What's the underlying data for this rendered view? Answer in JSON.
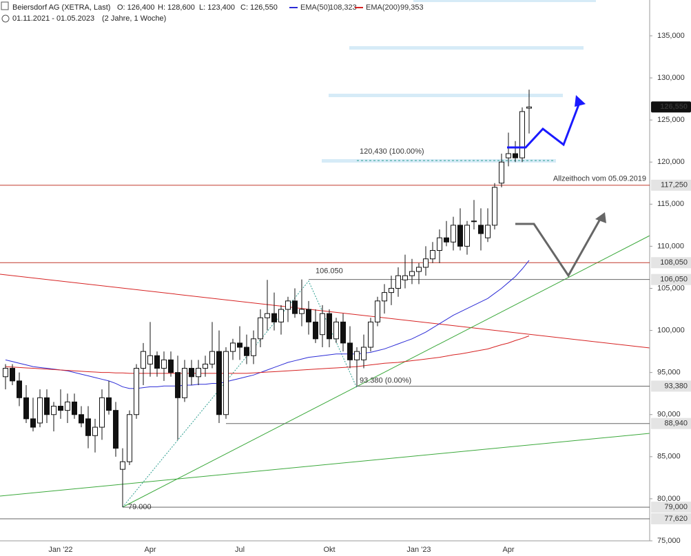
{
  "chart_data": {
    "type": "candlestick",
    "title": "Beiersdorf AG (XETRA, Last)",
    "ohlc_texts": [
      "O: 126,400",
      "H: 128,600",
      "L: 123,400",
      "C: 126,550"
    ],
    "date_range": "01.11.2021 - 01.05.2023",
    "period": "(2 Jahre, 1 Woche)",
    "categories": [
      null,
      null,
      null,
      null,
      null,
      null,
      null,
      null,
      "Jan '22",
      null,
      null,
      null,
      null,
      null,
      null,
      null,
      null,
      null,
      null,
      null,
      null,
      "Apr",
      null,
      null,
      null,
      null,
      null,
      null,
      null,
      null,
      null,
      null,
      null,
      null,
      "Jul",
      null,
      null,
      null,
      null,
      null,
      null,
      null,
      null,
      null,
      null,
      null,
      null,
      "Okt",
      null,
      null,
      null,
      null,
      null,
      null,
      null,
      null,
      null,
      null,
      null,
      null,
      "Jan '23",
      null,
      null,
      null,
      null,
      null,
      null,
      null,
      null,
      null,
      null,
      null,
      null,
      "Apr",
      null,
      null,
      null
    ],
    "open": [
      94500,
      95500,
      94000,
      92000,
      89500,
      89000,
      92000,
      90000,
      91000,
      90500,
      91500,
      90000,
      89500,
      87500,
      88500,
      92000,
      90500,
      83500,
      84400,
      90000,
      95500,
      96000,
      97000,
      95500,
      96500,
      95000,
      92000,
      95500,
      94500,
      95500,
      96000,
      97500,
      90000,
      97500,
      98500,
      98000,
      97000,
      99000,
      101500,
      102000,
      101000,
      102500,
      103500,
      102000,
      102500,
      101000,
      99500,
      102000,
      99000,
      101000,
      98500,
      96500,
      96500,
      98000,
      101000,
      103500,
      104500,
      105000,
      106000,
      106500,
      107000,
      107500,
      108500,
      109500,
      111000,
      110500,
      112500,
      110000,
      113000,
      112500,
      111000,
      112500,
      117500,
      120500,
      121000,
      120500,
      126400
    ],
    "high": [
      96000,
      96000,
      95000,
      93500,
      92000,
      93000,
      93000,
      91500,
      93000,
      92500,
      92500,
      91000,
      91000,
      89500,
      93000,
      94000,
      91500,
      86000,
      90500,
      96000,
      98500,
      101000,
      97500,
      97500,
      97500,
      97000,
      96500,
      96500,
      96500,
      97000,
      101000,
      100000,
      98000,
      99000,
      100500,
      99500,
      100000,
      102500,
      106000,
      104500,
      103000,
      104000,
      105000,
      106050,
      103500,
      102500,
      103000,
      102500,
      101500,
      102000,
      100500,
      98000,
      99500,
      101500,
      104000,
      105500,
      106500,
      107500,
      109000,
      108500,
      108000,
      110000,
      110500,
      112000,
      113000,
      113500,
      114500,
      113000,
      115500,
      114500,
      114500,
      117500,
      121000,
      123500,
      122500,
      126500,
      128600
    ],
    "low": [
      93000,
      93500,
      91000,
      89000,
      88000,
      88500,
      89000,
      88000,
      89500,
      89000,
      89500,
      88500,
      86000,
      85500,
      87000,
      90000,
      85000,
      79000,
      84000,
      89500,
      93500,
      94500,
      94500,
      94000,
      94500,
      87000,
      91500,
      93500,
      93500,
      94500,
      95500,
      89000,
      89500,
      96500,
      96500,
      96000,
      96000,
      98000,
      100000,
      100000,
      99500,
      101000,
      101500,
      100500,
      99500,
      98500,
      98000,
      98000,
      98500,
      97500,
      95500,
      93380,
      95500,
      97500,
      100500,
      102000,
      103000,
      104000,
      105000,
      105500,
      105500,
      106500,
      108000,
      108000,
      110000,
      109500,
      109500,
      109000,
      112000,
      109500,
      110500,
      112000,
      117000,
      119500,
      120000,
      120000,
      123400
    ],
    "close": [
      95500,
      94000,
      92000,
      89500,
      88500,
      92000,
      90000,
      91000,
      90500,
      91500,
      90000,
      89000,
      87500,
      88500,
      92000,
      90500,
      86000,
      84400,
      90000,
      95500,
      97500,
      97000,
      95500,
      96500,
      95000,
      92000,
      95500,
      94500,
      95500,
      96000,
      97500,
      90000,
      97500,
      98500,
      98000,
      97000,
      99000,
      101500,
      102000,
      101000,
      102500,
      103500,
      102000,
      102500,
      101000,
      99000,
      102000,
      99000,
      101000,
      98500,
      96500,
      97500,
      98000,
      101000,
      103500,
      104500,
      105000,
      106500,
      106500,
      107000,
      107500,
      108500,
      109500,
      111000,
      110500,
      112500,
      110000,
      112500,
      113000,
      111500,
      112500,
      117000,
      120000,
      121000,
      120500,
      126000,
      126550
    ],
    "series": [
      {
        "name": "EMA(50)",
        "color": "#2b2bd6",
        "value_label": "108,323",
        "values": [
          96500,
          96300,
          96100,
          95900,
          95700,
          95600,
          95500,
          95400,
          95300,
          95200,
          95000,
          94800,
          94600,
          94400,
          94200,
          94000,
          93700,
          93300,
          93100,
          93100,
          93200,
          93300,
          93300,
          93400,
          93400,
          93400,
          93500,
          93500,
          93600,
          93600,
          93700,
          93700,
          93900,
          94100,
          94300,
          94500,
          94700,
          95000,
          95300,
          95600,
          95900,
          96200,
          96400,
          96600,
          96800,
          96900,
          97000,
          97100,
          97200,
          97200,
          97200,
          97200,
          97300,
          97400,
          97600,
          97800,
          98100,
          98400,
          98700,
          99000,
          99400,
          99800,
          100300,
          100800,
          101300,
          101800,
          102200,
          102600,
          103000,
          103400,
          103800,
          104400,
          105000,
          105700,
          106400,
          107300,
          108323
        ]
      },
      {
        "name": "EMA(200)",
        "color": "#d62020",
        "value_label": "99,353",
        "values": [
          95700,
          95650,
          95600,
          95550,
          95500,
          95450,
          95400,
          95350,
          95300,
          95250,
          95200,
          95150,
          95100,
          95050,
          95000,
          95000,
          94950,
          94950,
          94900,
          94900,
          94900,
          94900,
          94900,
          94900,
          94900,
          94900,
          94900,
          94900,
          94900,
          94900,
          94900,
          94900,
          94900,
          94900,
          94900,
          94900,
          94950,
          95000,
          95050,
          95100,
          95150,
          95200,
          95250,
          95300,
          95350,
          95400,
          95450,
          95500,
          95550,
          95600,
          95650,
          95700,
          95800,
          95900,
          96000,
          96100,
          96150,
          96200,
          96300,
          96400,
          96500,
          96600,
          96700,
          96800,
          96950,
          97100,
          97200,
          97350,
          97500,
          97650,
          97800,
          98050,
          98300,
          98500,
          98800,
          99050,
          99353
        ]
      }
    ],
    "last_price": {
      "value": 126550,
      "label": "126,550"
    },
    "levels": [
      {
        "value": 117250,
        "label": "117,250",
        "color": "#c0392b",
        "note": "Allzeithoch vom 05.09.2019"
      },
      {
        "value": 108050,
        "label": "108,050",
        "color": "#c0392b"
      },
      {
        "value": 106050,
        "label": "106,050",
        "color": "#666666"
      },
      {
        "value": 93380,
        "label": "93,380",
        "color": "#666666"
      },
      {
        "value": 88940,
        "label": "88,940",
        "color": "#666666"
      },
      {
        "value": 79000,
        "label": "79,000",
        "color": "#666666"
      },
      {
        "value": 77620,
        "label": "77,620",
        "color": "#666666"
      }
    ],
    "fib_labels": [
      {
        "value": 120430,
        "label": "120,430 (100.00%)"
      },
      {
        "value": 106050,
        "label": "106.050"
      },
      {
        "value": 93380,
        "label": "93.380 (0.00%)"
      },
      {
        "value": 79000,
        "label": "79.000"
      }
    ],
    "ylim": [
      75000,
      139255
    ],
    "yticks": [
      {
        "value": 75000,
        "label": "75,000"
      },
      {
        "value": 80000,
        "label": "80,000"
      },
      {
        "value": 85000,
        "label": "85,000"
      },
      {
        "value": 90000,
        "label": "90,000"
      },
      {
        "value": 95000,
        "label": "95,000"
      },
      {
        "value": 100000,
        "label": "100,000"
      },
      {
        "value": 105000,
        "label": "105,000"
      },
      {
        "value": 110000,
        "label": "110,000"
      },
      {
        "value": 115000,
        "label": "115,000"
      },
      {
        "value": 120000,
        "label": "120,000"
      },
      {
        "value": 125000,
        "label": "125,000"
      },
      {
        "value": 130000,
        "label": "130,000"
      },
      {
        "value": 135000,
        "label": "135,000"
      }
    ]
  }
}
